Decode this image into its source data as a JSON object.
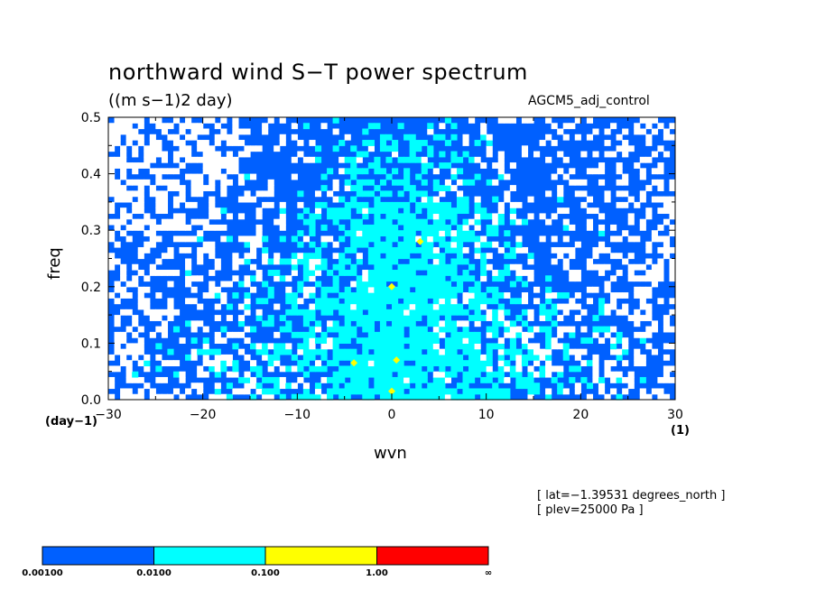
{
  "chart_data": {
    "type": "heatmap",
    "title": "northward wind S−T power spectrum",
    "units_label": "((m s−1)2 day)",
    "model_label": "AGCM5_adj_control",
    "xlabel": "wvn",
    "ylabel": "freq",
    "x_unit": "(1)",
    "y_unit": "(day−1)",
    "xlim": [
      -30,
      30
    ],
    "ylim": [
      0,
      0.5
    ],
    "x_ticks": [
      -30,
      -20,
      -10,
      0,
      10,
      20,
      30
    ],
    "x_tick_labels": [
      "−30",
      "−20",
      "−10",
      "0",
      "10",
      "20",
      "30"
    ],
    "y_ticks": [
      0.0,
      0.1,
      0.2,
      0.3,
      0.4,
      0.5
    ],
    "y_tick_labels": [
      "0.0",
      "0.1",
      "0.2",
      "0.3",
      "0.4",
      "0.5"
    ],
    "info_lines": [
      "[ lat=−1.39531 degrees_north ]",
      "[ plev=25000 Pa ]"
    ],
    "colorbar": {
      "levels": [
        "0.00100",
        "0.0100",
        "0.100",
        "1.00",
        "∞"
      ],
      "colors": [
        "#0060ff",
        "#00ffff",
        "#ffff00",
        "#ff0000"
      ]
    },
    "background_color": "#ffffff",
    "peaks": [
      {
        "wvn": 0,
        "freq": 0.2,
        "level": 2
      },
      {
        "wvn": 3,
        "freq": 0.28,
        "level": 2
      },
      {
        "wvn": -4,
        "freq": 0.065,
        "level": 2
      },
      {
        "wvn": 0,
        "freq": 0.015,
        "level": 2
      },
      {
        "wvn": 0.5,
        "freq": 0.07,
        "level": 2
      }
    ]
  }
}
